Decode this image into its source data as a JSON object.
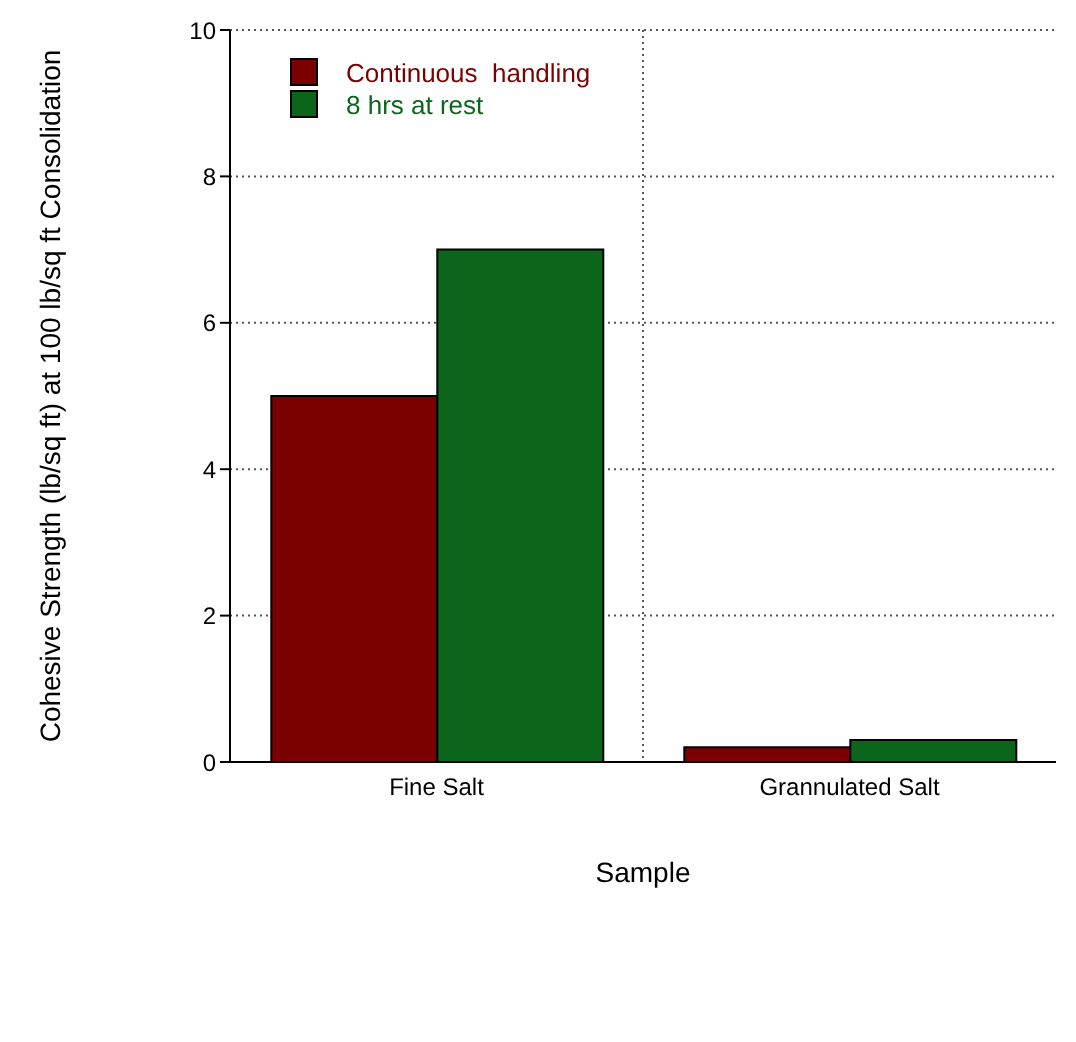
{
  "chart_data": {
    "type": "bar",
    "xlabel": "Sample",
    "ylabel": "Cohesive Strength (lb/sq ft) at 100 lb/sq ft Consolidation",
    "categories": [
      "Fine Salt",
      "Grannulated Salt"
    ],
    "series": [
      {
        "name": "Continuous  handling",
        "color": "#7b0000",
        "values": [
          5,
          0.2
        ]
      },
      {
        "name": "8 hrs at rest",
        "color": "#0b661c",
        "values": [
          7,
          0.3
        ]
      }
    ],
    "ylim": [
      0,
      10
    ],
    "yticks": [
      0,
      2,
      4,
      6,
      8,
      10
    ],
    "grid": true,
    "legend": "top left"
  }
}
